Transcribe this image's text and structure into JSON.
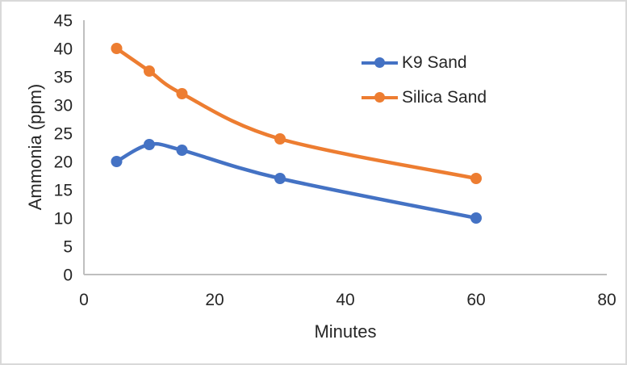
{
  "chart_data": {
    "type": "line",
    "title": "",
    "xlabel": "Minutes",
    "ylabel": "Ammonia (ppm)",
    "x": [
      5,
      10,
      15,
      30,
      60
    ],
    "series": [
      {
        "name": "K9 Sand",
        "color": "#4472C4",
        "values": [
          20,
          23,
          22,
          17,
          10
        ]
      },
      {
        "name": "Silica Sand",
        "color": "#ED7D31",
        "values": [
          40,
          36,
          32,
          24,
          17
        ]
      }
    ],
    "xlim": [
      0,
      80
    ],
    "ylim": [
      0,
      45
    ],
    "x_ticks": [
      0,
      20,
      40,
      60,
      80
    ],
    "y_ticks": [
      0,
      5,
      10,
      15,
      20,
      25,
      30,
      35,
      40,
      45
    ],
    "grid": false,
    "smooth": true,
    "legend_position": "inside-upper-right",
    "marker": "circle",
    "colors": {
      "axis_line": "#BFBFBF",
      "text": "#262626",
      "frame_border": "#D9D9D9",
      "background": "#FFFFFF"
    }
  }
}
